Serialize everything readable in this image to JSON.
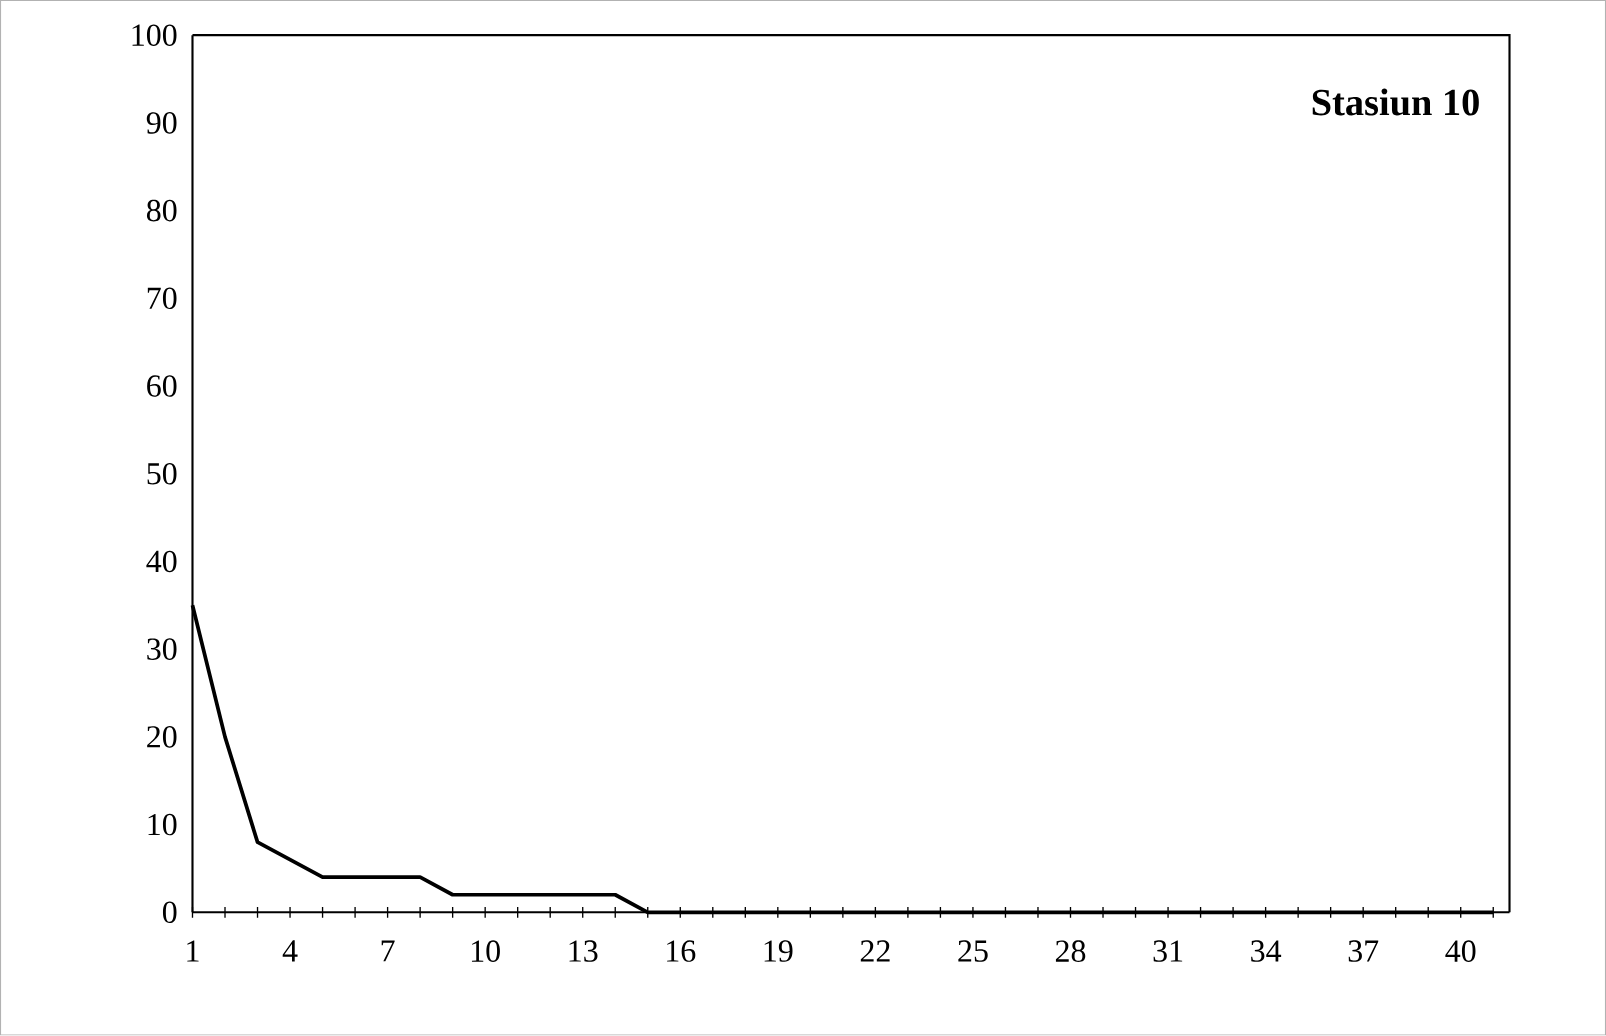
{
  "chart_data": {
    "type": "line",
    "title": "Stasiun 10",
    "x": [
      1,
      2,
      3,
      4,
      5,
      6,
      7,
      8,
      9,
      10,
      11,
      12,
      13,
      14,
      15,
      16,
      17,
      18,
      19,
      20,
      21,
      22,
      23,
      24,
      25,
      26,
      27,
      28,
      29,
      30,
      31,
      32,
      33,
      34,
      35,
      36,
      37,
      38,
      39,
      40,
      41
    ],
    "series": [
      {
        "color": "#000000",
        "values": [
          35,
          20,
          8,
          6,
          4,
          4,
          4,
          4,
          2,
          2,
          2,
          2,
          2,
          2,
          0,
          0,
          0,
          0,
          0,
          0,
          0,
          0,
          0,
          0,
          0,
          0,
          0,
          0,
          0,
          0,
          0,
          0,
          0,
          0,
          0,
          0,
          0,
          0,
          0,
          0,
          0
        ]
      }
    ],
    "xlim": [
      1,
      41.5
    ],
    "xticks": [
      1,
      {
        "value": 2,
        "label": null
      },
      {
        "value": 3,
        "label": null
      },
      4,
      {
        "value": 5,
        "label": null
      },
      {
        "value": 6,
        "label": null
      },
      7,
      {
        "value": 8,
        "label": null
      },
      {
        "value": 9,
        "label": null
      },
      10,
      {
        "value": 11,
        "label": null
      },
      {
        "value": 12,
        "label": null
      },
      13,
      {
        "value": 14,
        "label": null
      },
      {
        "value": 15,
        "label": null
      },
      16,
      {
        "value": 17,
        "label": null
      },
      {
        "value": 18,
        "label": null
      },
      19,
      {
        "value": 20,
        "label": null
      },
      {
        "value": 21,
        "label": null
      },
      22,
      {
        "value": 23,
        "label": null
      },
      {
        "value": 24,
        "label": null
      },
      25,
      {
        "value": 26,
        "label": null
      },
      {
        "value": 27,
        "label": null
      },
      28,
      {
        "value": 29,
        "label": null
      },
      {
        "value": 30,
        "label": null
      },
      31,
      {
        "value": 32,
        "label": null
      },
      {
        "value": 33,
        "label": null
      },
      34,
      {
        "value": 35,
        "label": null
      },
      {
        "value": 36,
        "label": null
      },
      37,
      {
        "value": 38,
        "label": null
      },
      {
        "value": 39,
        "label": null
      },
      40,
      {
        "value": 41,
        "label": null
      }
    ],
    "ylim": [
      0,
      100
    ],
    "yticks": [
      0,
      10,
      20,
      30,
      40,
      50,
      60,
      70,
      80,
      90,
      100
    ],
    "grid": false,
    "marker": "none",
    "line_style": "solid"
  }
}
